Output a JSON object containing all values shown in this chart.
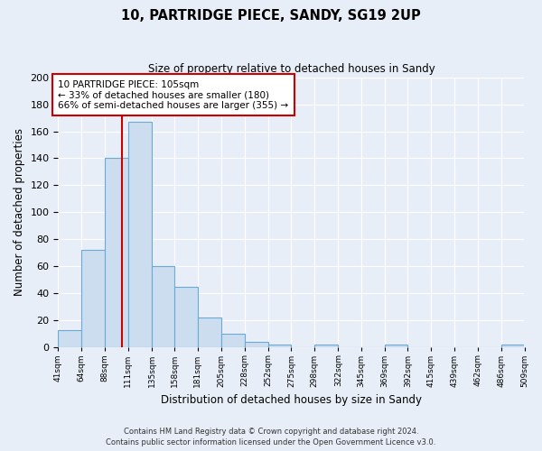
{
  "title": "10, PARTRIDGE PIECE, SANDY, SG19 2UP",
  "subtitle": "Size of property relative to detached houses in Sandy",
  "xlabel": "Distribution of detached houses by size in Sandy",
  "ylabel": "Number of detached properties",
  "bar_color": "#ccddf0",
  "bar_edge_color": "#6aaad4",
  "background_color": "#e8eef8",
  "grid_color": "#d0d8e8",
  "bin_edges": [
    41,
    64,
    88,
    111,
    135,
    158,
    181,
    205,
    228,
    252,
    275,
    298,
    322,
    345,
    369,
    392,
    415,
    439,
    462,
    486,
    509
  ],
  "bar_heights": [
    13,
    72,
    140,
    167,
    60,
    45,
    22,
    10,
    4,
    2,
    0,
    2,
    0,
    0,
    2,
    0,
    0,
    0,
    0,
    2
  ],
  "property_size": 105,
  "red_line_color": "#cc0000",
  "annotation_title": "10 PARTRIDGE PIECE: 105sqm",
  "annotation_line1": "← 33% of detached houses are smaller (180)",
  "annotation_line2": "66% of semi-detached houses are larger (355) →",
  "annotation_box_color": "#ffffff",
  "annotation_border_color": "#cc0000",
  "ylim": [
    0,
    200
  ],
  "yticks": [
    0,
    20,
    40,
    60,
    80,
    100,
    120,
    140,
    160,
    180,
    200
  ],
  "footer_line1": "Contains HM Land Registry data © Crown copyright and database right 2024.",
  "footer_line2": "Contains public sector information licensed under the Open Government Licence v3.0."
}
